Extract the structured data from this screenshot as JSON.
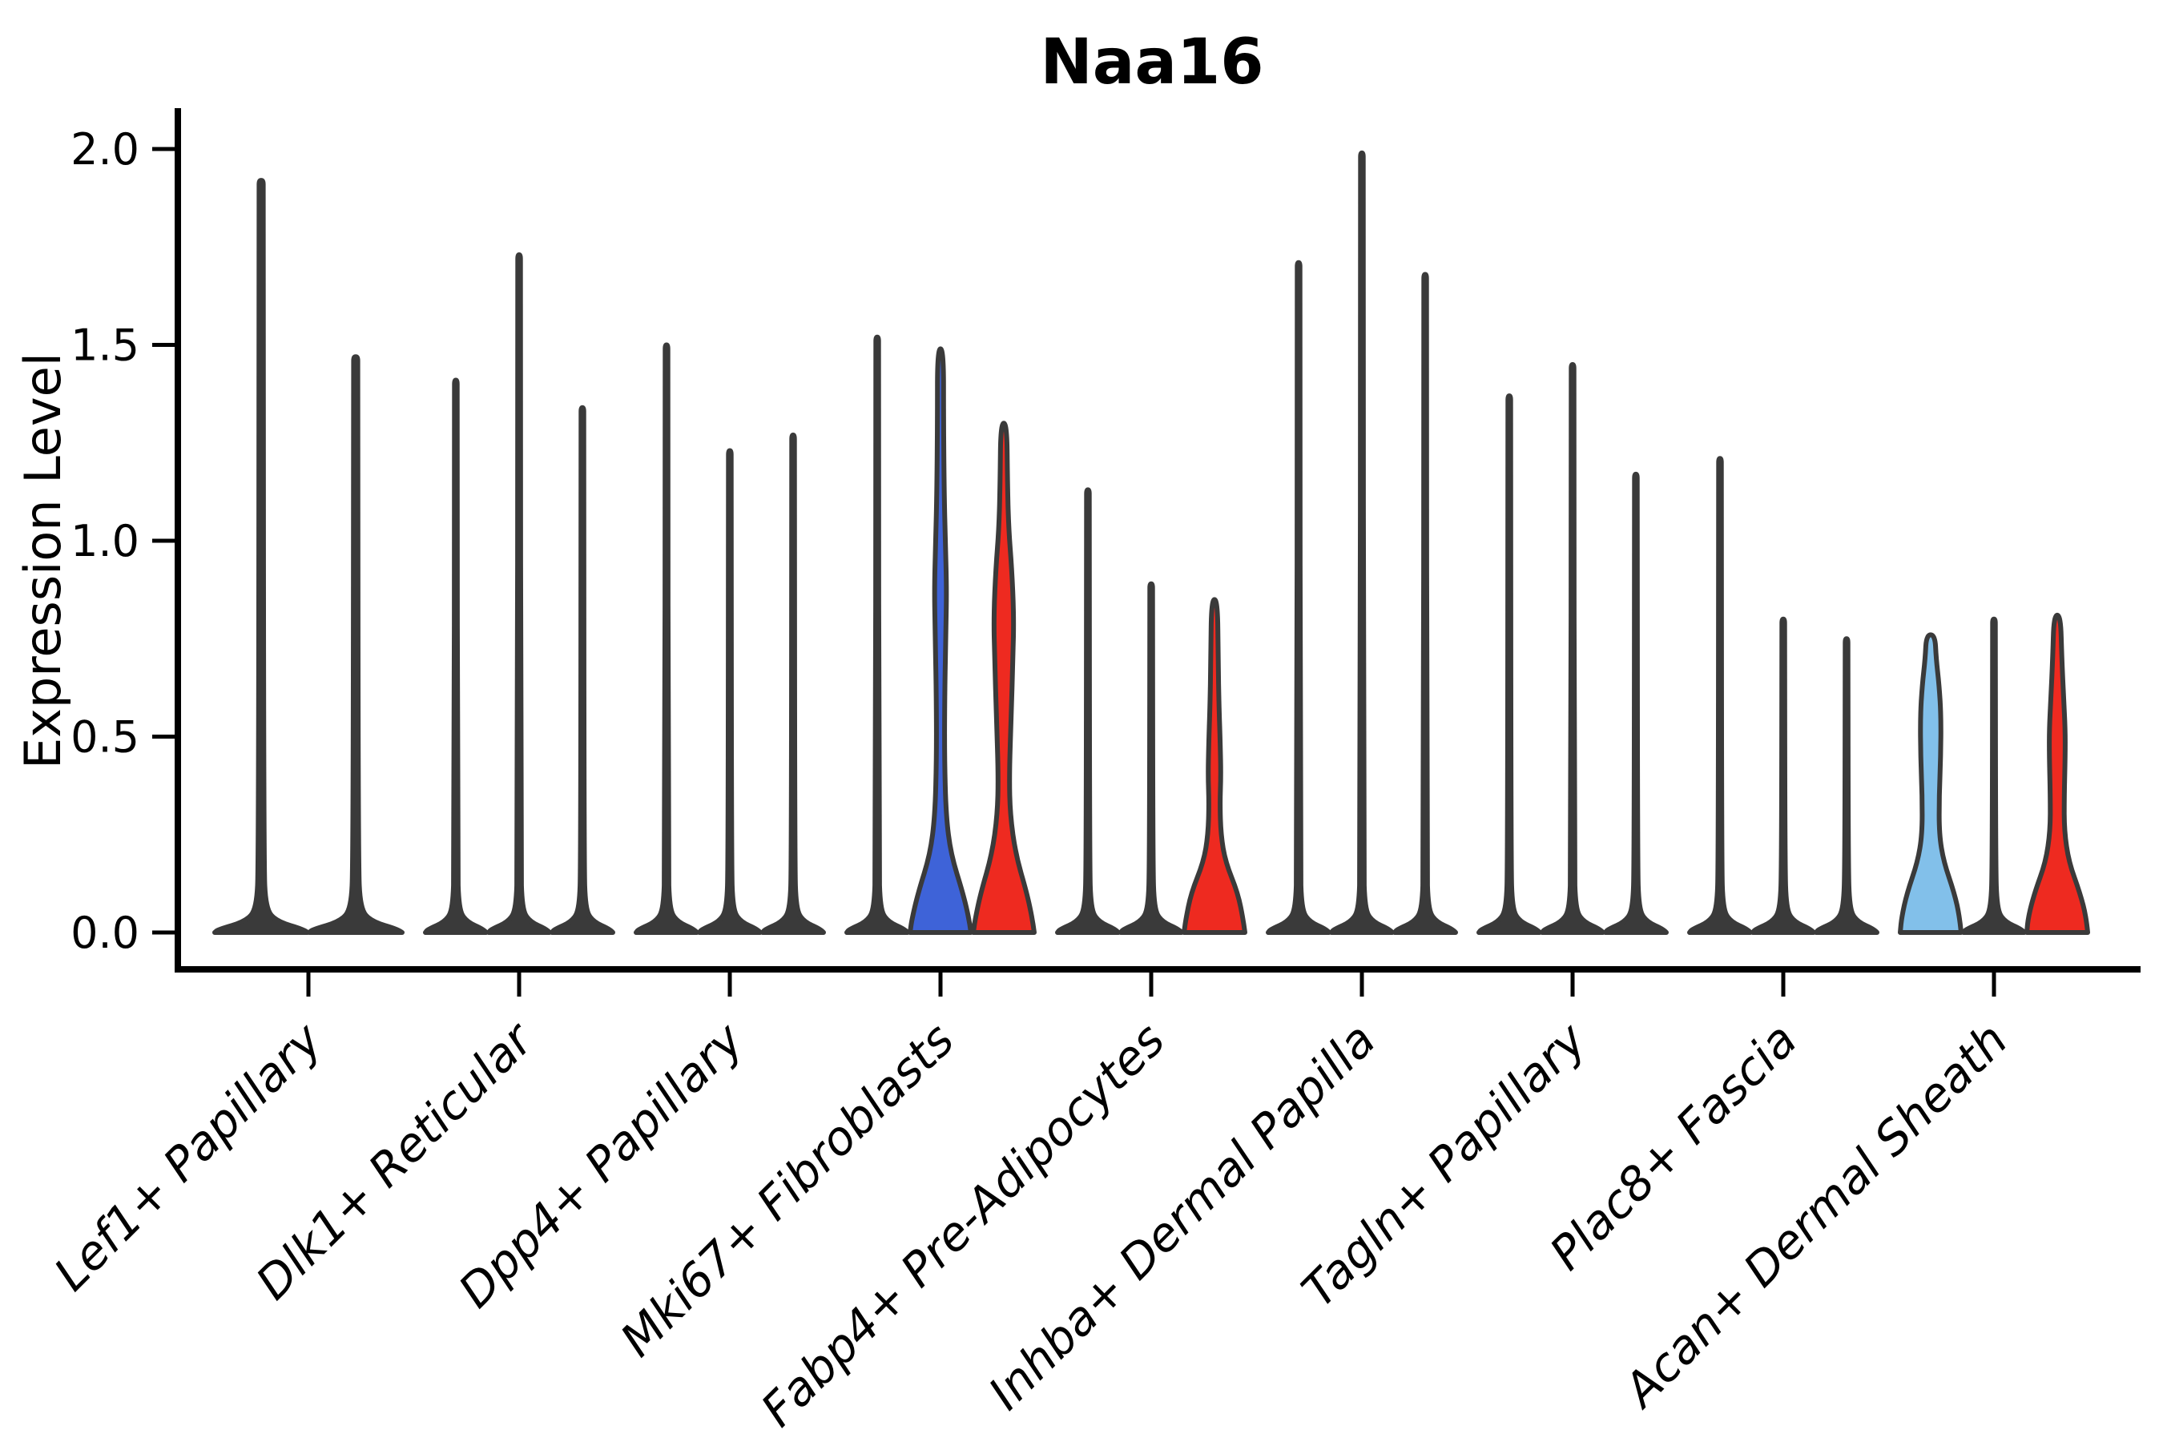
{
  "chart_data": {
    "type": "violin",
    "title": "Naa16",
    "xlabel": "",
    "ylabel": "Expression Level",
    "ylim": [
      0,
      2.1
    ],
    "yticks": [
      0.0,
      0.5,
      1.0,
      1.5,
      2.0
    ],
    "y_tick_labels": [
      "0.0",
      "0.5",
      "1.0",
      "1.5",
      "2.0"
    ],
    "grid": false,
    "legend": null,
    "palette": {
      "dark": "#3A3A3A",
      "blue": "#3E63D8",
      "red": "#EE2A20",
      "skyblue": "#82C0EA"
    },
    "categories": [
      "Lef1+ Papillary",
      "Dlk1+ Reticular",
      "Dpp4+ Papillary",
      "Mki67+ Fibroblasts",
      "Fabp4+ Pre-Adipocytes",
      "Inhba+ Dermal Papilla",
      "Tagln+ Papillary",
      "Plac8+ Fascia",
      "Acan+ Dermal Sheath"
    ],
    "groups": [
      {
        "category": "Lef1+ Papillary",
        "violins": [
          {
            "max": 1.92,
            "color": "dark",
            "kind": "spike"
          },
          {
            "max": 1.47,
            "color": "dark",
            "kind": "spike"
          }
        ]
      },
      {
        "category": "Dlk1+ Reticular",
        "violins": [
          {
            "max": 1.41,
            "color": "dark",
            "kind": "spike"
          },
          {
            "max": 1.73,
            "color": "dark",
            "kind": "spike"
          },
          {
            "max": 1.34,
            "color": "dark",
            "kind": "spike"
          }
        ]
      },
      {
        "category": "Dpp4+ Papillary",
        "violins": [
          {
            "max": 1.5,
            "color": "dark",
            "kind": "spike"
          },
          {
            "max": 1.23,
            "color": "dark",
            "kind": "spike"
          },
          {
            "max": 1.27,
            "color": "dark",
            "kind": "spike"
          }
        ]
      },
      {
        "category": "Mki67+ Fibroblasts",
        "violins": [
          {
            "max": 1.52,
            "color": "dark",
            "kind": "spike"
          },
          {
            "max": 1.49,
            "color": "blue",
            "kind": "kde",
            "profile": [
              [
                0,
                1
              ],
              [
                0.03,
                0.95
              ],
              [
                0.1,
                0.74
              ],
              [
                0.2,
                0.34
              ],
              [
                0.3,
                0.18
              ],
              [
                0.45,
                0.13
              ],
              [
                0.62,
                0.14
              ],
              [
                0.78,
                0.18
              ],
              [
                0.88,
                0.2
              ],
              [
                1.0,
                0.16
              ],
              [
                1.12,
                0.12
              ],
              [
                1.3,
                0.1
              ],
              [
                1.49,
                0.1
              ]
            ]
          },
          {
            "max": 1.3,
            "color": "red",
            "kind": "kde",
            "profile": [
              [
                0,
                1
              ],
              [
                0.03,
                0.95
              ],
              [
                0.1,
                0.76
              ],
              [
                0.2,
                0.39
              ],
              [
                0.3,
                0.21
              ],
              [
                0.4,
                0.18
              ],
              [
                0.55,
                0.24
              ],
              [
                0.7,
                0.3
              ],
              [
                0.81,
                0.33
              ],
              [
                0.93,
                0.26
              ],
              [
                1.03,
                0.16
              ],
              [
                1.15,
                0.12
              ],
              [
                1.3,
                0.1
              ]
            ]
          }
        ]
      },
      {
        "category": "Fabp4+ Pre-Adipocytes",
        "violins": [
          {
            "max": 1.13,
            "color": "dark",
            "kind": "spike"
          },
          {
            "max": 0.89,
            "color": "dark",
            "kind": "spike"
          },
          {
            "max": 0.85,
            "color": "red",
            "kind": "kde",
            "profile": [
              [
                0,
                1
              ],
              [
                0.03,
                0.95
              ],
              [
                0.1,
                0.77
              ],
              [
                0.18,
                0.36
              ],
              [
                0.25,
                0.21
              ],
              [
                0.33,
                0.18
              ],
              [
                0.4,
                0.21
              ],
              [
                0.48,
                0.19
              ],
              [
                0.57,
                0.15
              ],
              [
                0.7,
                0.12
              ],
              [
                0.85,
                0.1
              ]
            ]
          }
        ]
      },
      {
        "category": "Inhba+ Dermal Papilla",
        "violins": [
          {
            "max": 1.71,
            "color": "dark",
            "kind": "spike"
          },
          {
            "max": 1.99,
            "color": "dark",
            "kind": "spike"
          },
          {
            "max": 1.68,
            "color": "dark",
            "kind": "spike"
          }
        ]
      },
      {
        "category": "Tagln+ Papillary",
        "violins": [
          {
            "max": 1.37,
            "color": "dark",
            "kind": "spike"
          },
          {
            "max": 1.45,
            "color": "dark",
            "kind": "spike"
          },
          {
            "max": 1.17,
            "color": "dark",
            "kind": "spike"
          }
        ]
      },
      {
        "category": "Plac8+ Fascia",
        "violins": [
          {
            "max": 1.21,
            "color": "dark",
            "kind": "spike"
          },
          {
            "max": 0.8,
            "color": "dark",
            "kind": "spike"
          },
          {
            "max": 0.75,
            "color": "dark",
            "kind": "spike"
          }
        ]
      },
      {
        "category": "Acan+ Dermal Sheath",
        "violins": [
          {
            "max": 0.76,
            "color": "skyblue",
            "kind": "kde",
            "profile": [
              [
                0,
                1
              ],
              [
                0.04,
                0.95
              ],
              [
                0.1,
                0.78
              ],
              [
                0.18,
                0.43
              ],
              [
                0.25,
                0.28
              ],
              [
                0.35,
                0.28
              ],
              [
                0.45,
                0.33
              ],
              [
                0.55,
                0.34
              ],
              [
                0.63,
                0.28
              ],
              [
                0.7,
                0.18
              ],
              [
                0.76,
                0.14
              ]
            ]
          },
          {
            "max": 0.8,
            "color": "dark",
            "kind": "spike"
          },
          {
            "max": 0.81,
            "color": "red",
            "kind": "kde",
            "profile": [
              [
                0,
                1
              ],
              [
                0.04,
                0.95
              ],
              [
                0.1,
                0.75
              ],
              [
                0.18,
                0.38
              ],
              [
                0.26,
                0.23
              ],
              [
                0.35,
                0.23
              ],
              [
                0.45,
                0.26
              ],
              [
                0.52,
                0.26
              ],
              [
                0.6,
                0.21
              ],
              [
                0.7,
                0.15
              ],
              [
                0.81,
                0.11
              ]
            ]
          }
        ]
      }
    ]
  }
}
